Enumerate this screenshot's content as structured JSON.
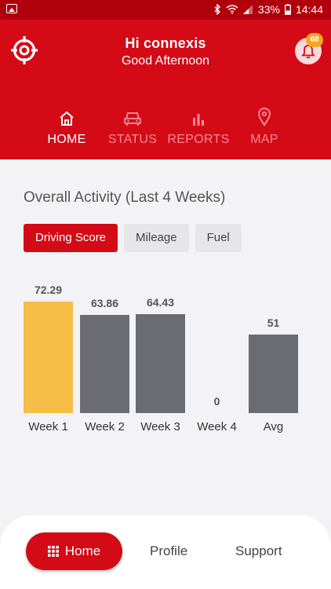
{
  "status_bar": {
    "battery": "33%",
    "time": "14:44"
  },
  "header": {
    "greeting": "Hi connexis",
    "subgreeting": "Good Afternoon",
    "notification_count": "68"
  },
  "nav": [
    {
      "label": "HOME",
      "icon": "home-icon",
      "active": true
    },
    {
      "label": "STATUS",
      "icon": "car-icon",
      "active": false
    },
    {
      "label": "REPORTS",
      "icon": "bar-chart-icon",
      "active": false
    },
    {
      "label": "MAP",
      "icon": "map-pin-icon",
      "active": false
    }
  ],
  "activity": {
    "title": "Overall Activity (Last 4 Weeks)",
    "filters": [
      {
        "label": "Driving Score",
        "active": true
      },
      {
        "label": "Mileage",
        "active": false
      },
      {
        "label": "Fuel",
        "active": false
      }
    ]
  },
  "chart_data": {
    "type": "bar",
    "categories": [
      "Week 1",
      "Week 2",
      "Week 3",
      "Week 4",
      "Avg"
    ],
    "values": [
      72.29,
      63.86,
      64.43,
      0,
      51
    ],
    "value_labels": [
      "72.29",
      "63.86",
      "64.43",
      "0",
      "51"
    ],
    "highlighted_index": 0,
    "colors": {
      "highlight": "#f7be45",
      "default": "#6b6b74"
    },
    "ylim": [
      0,
      75
    ]
  },
  "bottom_nav": {
    "home": "Home",
    "profile": "Profile",
    "support": "Support"
  },
  "colors": {
    "brand": "#d40a17",
    "status_bar": "#b0000c",
    "badge": "#f6a623"
  }
}
